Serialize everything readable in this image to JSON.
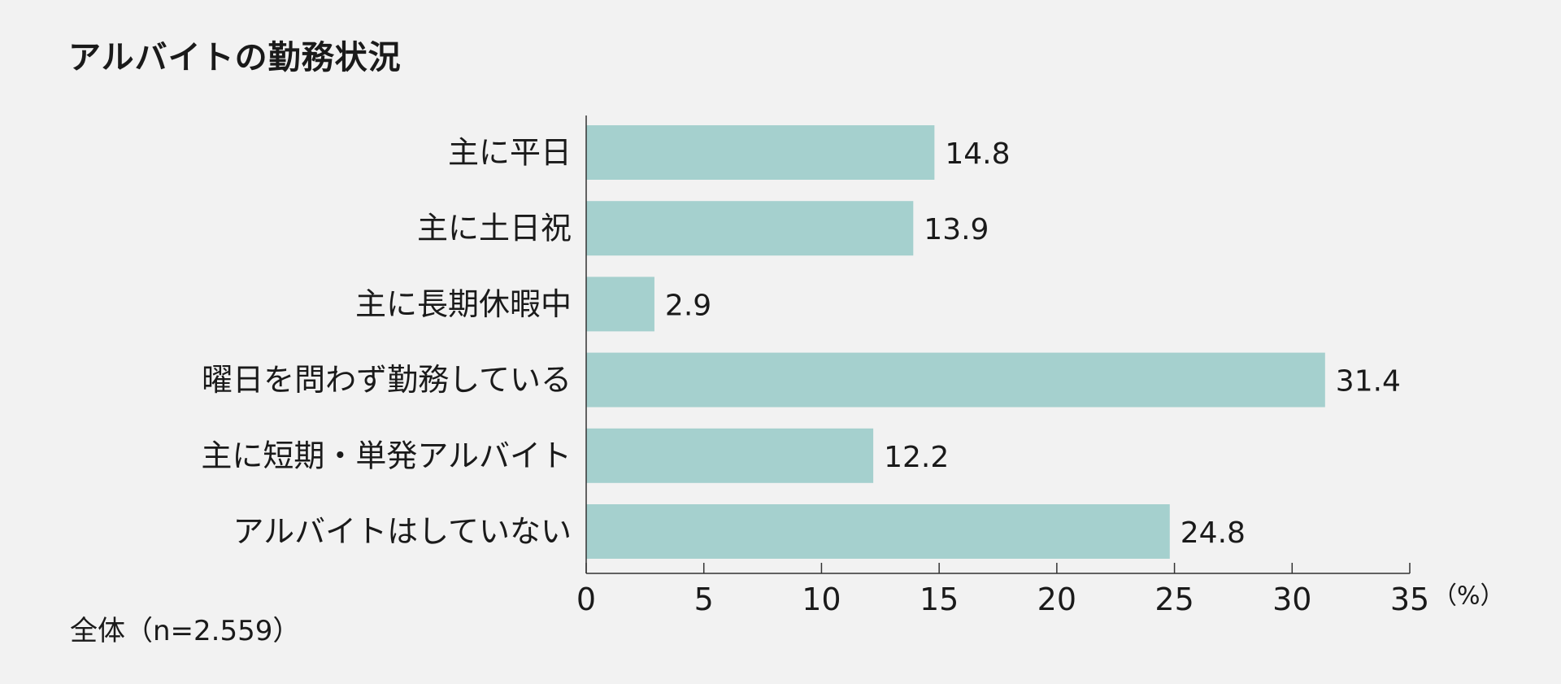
{
  "chart_data": {
    "type": "bar",
    "orientation": "horizontal",
    "title": "アルバイトの勤務状況",
    "categories": [
      "主に平日",
      "主に土日祝",
      "主に長期休暇中",
      "曜日を問わず勤務している",
      "主に短期・単発アルバイト",
      "アルバイトはしていない"
    ],
    "values": [
      14.8,
      13.9,
      2.9,
      31.4,
      12.2,
      24.8
    ],
    "value_labels": [
      "14.8",
      "13.9",
      "2.9",
      "31.4",
      "12.2",
      "24.8"
    ],
    "xlim": [
      0,
      35
    ],
    "xticks": [
      0,
      5,
      10,
      15,
      20,
      25,
      30,
      35
    ],
    "xunit": "（%）",
    "note": "全体（n=2.559）",
    "bar_color": "#a5d0ce",
    "grid": false,
    "legend": "none"
  }
}
